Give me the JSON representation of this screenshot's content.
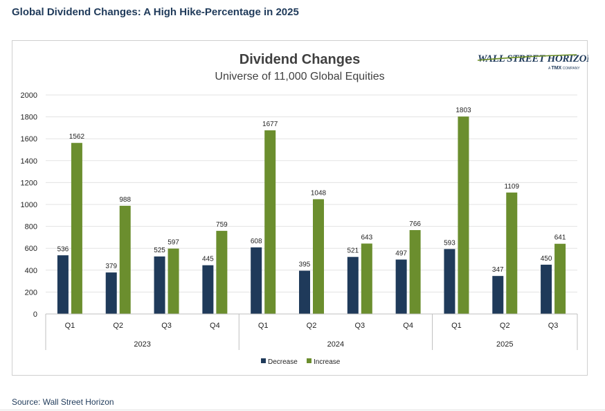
{
  "header": {
    "title": "Global Dividend Changes: A High Hike-Percentage in 2025"
  },
  "footer": {
    "source": "Source: Wall Street Horizon"
  },
  "logo": {
    "main": "WALL STREET HORIZON",
    "sub_prefix": "A",
    "sub_brand": "TMX",
    "sub_suffix": "COMPANY",
    "color": "#1f3a5a",
    "accent": "#6b8e23"
  },
  "colors": {
    "decrease": "#1f3a5a",
    "increase": "#6b8e2e",
    "grid": "#e3e3e3",
    "axis": "#bfbfbf",
    "text": "#1f1f1f"
  },
  "chart_data": {
    "type": "bar",
    "title": "Dividend Changes",
    "subtitle": "Universe of 11,000 Global Equities",
    "categories": [
      "Q1",
      "Q2",
      "Q3",
      "Q4",
      "Q1",
      "Q2",
      "Q3",
      "Q4",
      "Q1",
      "Q2",
      "Q3"
    ],
    "groups": [
      {
        "label": "2023",
        "count": 4
      },
      {
        "label": "2024",
        "count": 4
      },
      {
        "label": "2025",
        "count": 3
      }
    ],
    "series": [
      {
        "name": "Decrease",
        "values": [
          536,
          379,
          525,
          445,
          608,
          395,
          521,
          497,
          593,
          347,
          450
        ]
      },
      {
        "name": "Increase",
        "values": [
          1562,
          988,
          597,
          759,
          1677,
          1048,
          643,
          766,
          1803,
          1109,
          641
        ]
      }
    ],
    "ylim": [
      0,
      2000
    ],
    "yticks": [
      0,
      200,
      400,
      600,
      800,
      1000,
      1200,
      1400,
      1600,
      1800,
      2000
    ],
    "grid": true,
    "legend": "bottom"
  }
}
